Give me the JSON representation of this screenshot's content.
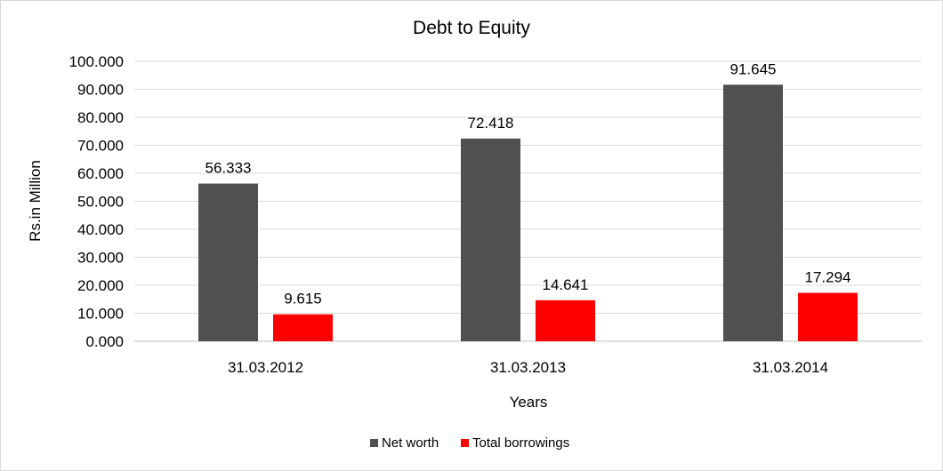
{
  "chart_data": {
    "type": "bar",
    "title": "Debt to Equity",
    "xlabel": "Years",
    "ylabel": "Rs.in Million",
    "categories": [
      "31.03.2012",
      "31.03.2013",
      "31.03.2014"
    ],
    "series": [
      {
        "name": "Net worth",
        "color": "#505050",
        "values": [
          56.333,
          72.418,
          91.645
        ]
      },
      {
        "name": "Total borrowings",
        "color": "#ff0000",
        "values": [
          9.615,
          14.641,
          17.294
        ]
      }
    ],
    "ylim": [
      0,
      100
    ],
    "yticks": [
      "0.000",
      "10.000",
      "20.000",
      "30.000",
      "40.000",
      "50.000",
      "60.000",
      "70.000",
      "80.000",
      "90.000",
      "100.000"
    ],
    "value_labels": [
      [
        "56.333",
        "72.418",
        "91.645"
      ],
      [
        "9.615",
        "14.641",
        "17.294"
      ]
    ],
    "grid": true,
    "legend_position": "bottom"
  }
}
